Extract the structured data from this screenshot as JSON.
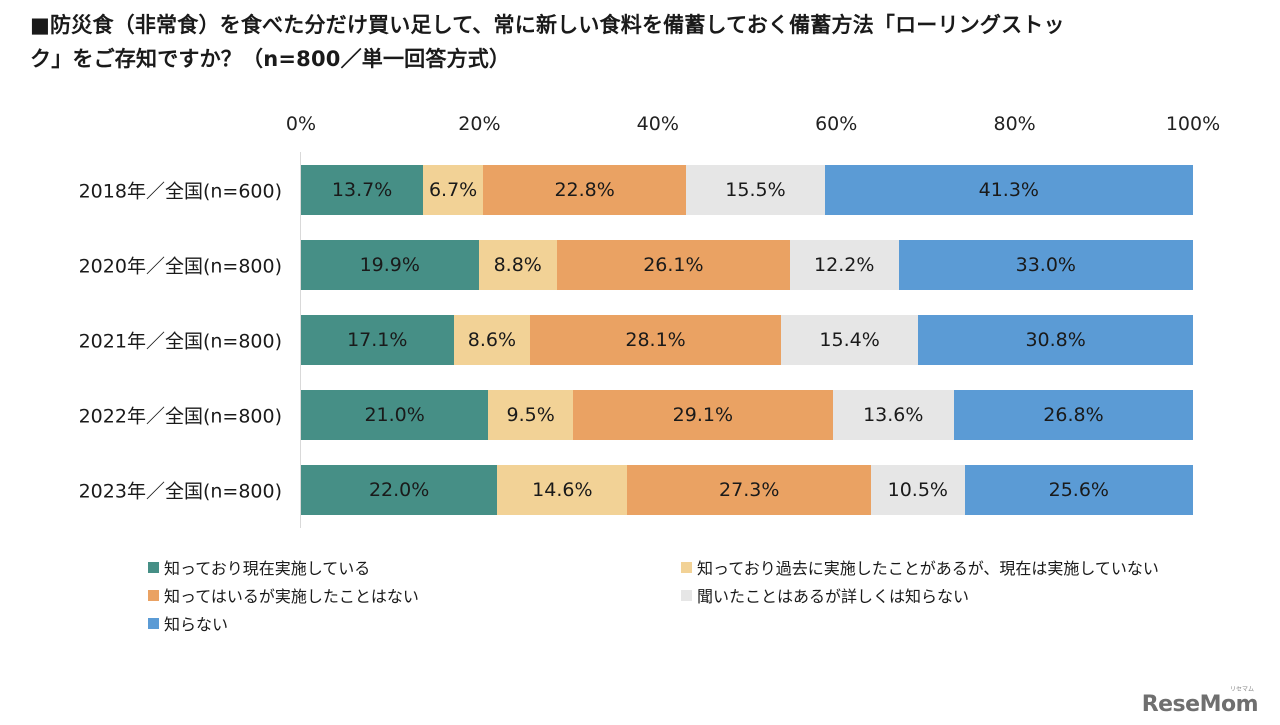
{
  "chart_data": {
    "type": "bar",
    "orientation": "horizontal",
    "stacked": "100%",
    "title": "■防災食（非常食）を食べた分だけ買い足して、常に新しい食料を備蓄しておく備蓄方法「ローリングストック」をご存知ですか？（n=800／単一回答方式）",
    "xlabel": "",
    "ylabel": "",
    "xlim": [
      0,
      100
    ],
    "x_ticks": [
      "0%",
      "20%",
      "40%",
      "60%",
      "80%",
      "100%"
    ],
    "x_tick_values": [
      0,
      20,
      40,
      60,
      80,
      100
    ],
    "grid": false,
    "legend_position": "bottom",
    "categories": [
      "2018年／全国(n=600)",
      "2020年／全国(n=800)",
      "2021年／全国(n=800)",
      "2022年／全国(n=800)",
      "2023年／全国(n=800)"
    ],
    "series": [
      {
        "name": "知っており現在実施している",
        "color": "#468f86",
        "values": [
          13.7,
          19.9,
          17.1,
          21.0,
          22.0
        ],
        "labels": [
          "13.7%",
          "19.9%",
          "17.1%",
          "21.0%",
          "22.0%"
        ]
      },
      {
        "name": "知っており過去に実施したことがあるが、現在は実施していない",
        "color": "#f2d296",
        "values": [
          6.7,
          8.8,
          8.6,
          9.5,
          14.6
        ],
        "labels": [
          "6.7%",
          "8.8%",
          "8.6%",
          "9.5%",
          "14.6%"
        ]
      },
      {
        "name": "知ってはいるが実施したことはない",
        "color": "#eaa263",
        "values": [
          22.8,
          26.1,
          28.1,
          29.1,
          27.3
        ],
        "labels": [
          "22.8%",
          "26.1%",
          "28.1%",
          "29.1%",
          "27.3%"
        ]
      },
      {
        "name": "聞いたことはあるが詳しくは知らない",
        "color": "#e6e6e6",
        "values": [
          15.5,
          12.2,
          15.4,
          13.6,
          10.5
        ],
        "labels": [
          "15.5%",
          "12.2%",
          "15.4%",
          "13.6%",
          "10.5%"
        ]
      },
      {
        "name": "知らない",
        "color": "#5b9bd5",
        "values": [
          41.3,
          33.0,
          30.8,
          26.8,
          25.6
        ],
        "labels": [
          "41.3%",
          "33.0%",
          "30.8%",
          "26.8%",
          "25.6%"
        ]
      }
    ]
  },
  "title_lines": [
    "■防災食（非常食）を食べた分だけ買い足して、常に新しい食料を備蓄しておく備蓄方法「ローリングストッ",
    "ク」をご存知ですか？（n=800／単一回答方式）"
  ],
  "logo": {
    "text": "ReseMom",
    "kana": "リセマム"
  }
}
